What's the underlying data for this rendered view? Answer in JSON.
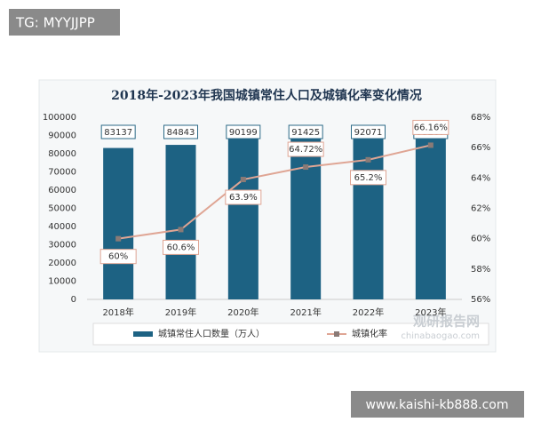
{
  "overlay_top": "TG: MYYJJPP",
  "overlay_bottom": "www.kaishi-kb888.com",
  "source_logo": "观研报告网",
  "source_url": "chinabaogao.com",
  "chart_data": {
    "type": "combo",
    "title": "2018年-2023年我国城镇常住人口及城镇化率变化情况",
    "categories": [
      "2018年",
      "2019年",
      "2020年",
      "2021年",
      "2022年",
      "2023年"
    ],
    "series": [
      {
        "name": "城镇常住人口数量（万人）",
        "type": "bar",
        "color": "#1d6283",
        "axis": "y",
        "values": [
          83137,
          84843,
          90199,
          91425,
          92071,
          93267
        ]
      },
      {
        "name": "城镇化率",
        "type": "line",
        "color": "#dfa594",
        "axis": "y2",
        "values": [
          60,
          60.6,
          63.9,
          64.72,
          65.2,
          66.16
        ],
        "value_labels": [
          "60%",
          "60.6%",
          "63.9%",
          "64.72%",
          "65.2%",
          "66.16%"
        ]
      }
    ],
    "ylim": [
      0,
      100000
    ],
    "yticks": [
      0,
      10000,
      20000,
      30000,
      40000,
      50000,
      60000,
      70000,
      80000,
      90000,
      100000
    ],
    "y2lim": [
      56,
      68
    ],
    "y2ticks": [
      {
        "value": 56,
        "label": "56%"
      },
      {
        "value": 58,
        "label": "58%"
      },
      {
        "value": 60,
        "label": "60%"
      },
      {
        "value": 62,
        "label": "62%"
      },
      {
        "value": 64,
        "label": "64%"
      },
      {
        "value": 66,
        "label": "66%"
      },
      {
        "value": 68,
        "label": "68%"
      }
    ],
    "grid": false,
    "legend": "bottom"
  }
}
